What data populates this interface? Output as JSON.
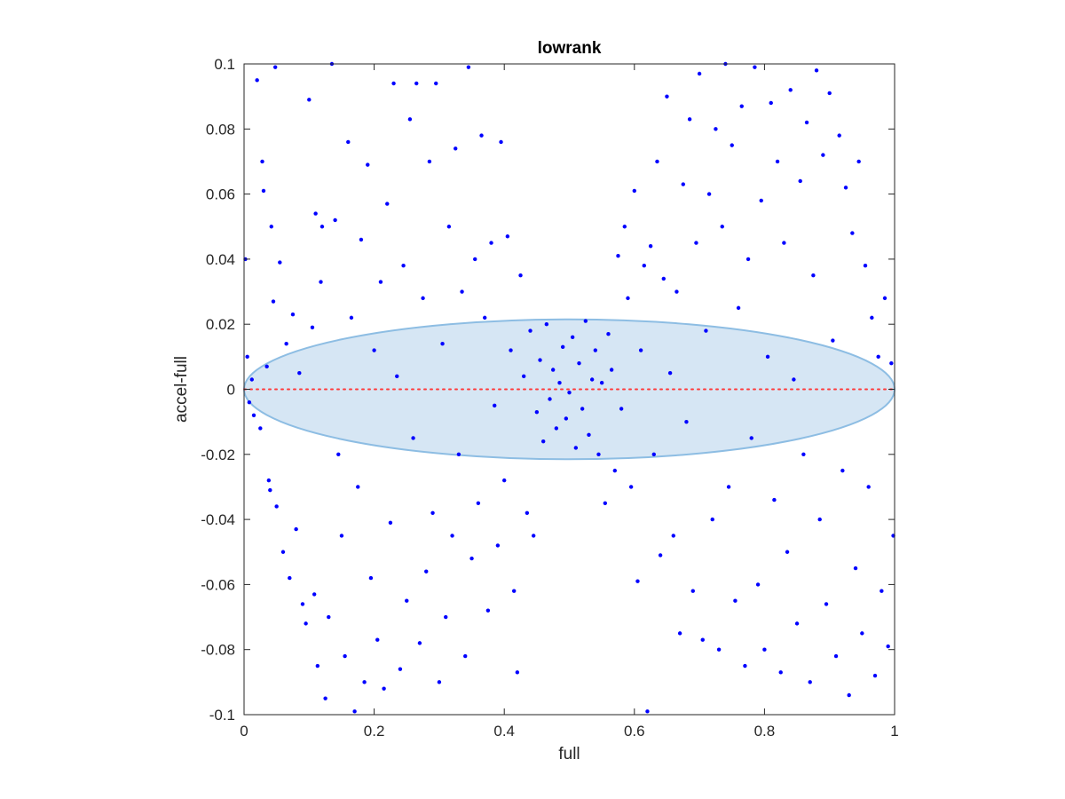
{
  "chart_data": {
    "type": "scatter",
    "title": "lowrank",
    "xlabel": "full",
    "ylabel": "accel-full",
    "xlim": [
      0,
      1
    ],
    "ylim": [
      -0.1,
      0.1
    ],
    "xticks": [
      "0",
      "0.2",
      "0.4",
      "0.6",
      "0.8",
      "1"
    ],
    "yticks": [
      "0.1",
      "0.08",
      "0.06",
      "0.04",
      "0.02",
      "0",
      "-0.02",
      "-0.04",
      "-0.06",
      "-0.08",
      "-0.1"
    ],
    "grid": false,
    "box": true,
    "reference_line": {
      "y": 0,
      "style": "dotted",
      "color": "#ff3b3b"
    },
    "ellipse": {
      "cx": 0.5,
      "cy": 0,
      "rx": 0.5,
      "ry": 0.0215,
      "fill": "#d6e6f4",
      "stroke": "#8dbde3"
    },
    "marker_color": "#0000ff",
    "series": [
      {
        "name": "",
        "points": [
          [
            0.002,
            0.04
          ],
          [
            0.005,
            0.01
          ],
          [
            0.008,
            -0.004
          ],
          [
            0.012,
            0.003
          ],
          [
            0.015,
            -0.008
          ],
          [
            0.02,
            0.095
          ],
          [
            0.025,
            -0.012
          ],
          [
            0.028,
            0.07
          ],
          [
            0.03,
            0.061
          ],
          [
            0.035,
            0.007
          ],
          [
            0.038,
            -0.028
          ],
          [
            0.04,
            -0.031
          ],
          [
            0.042,
            0.05
          ],
          [
            0.045,
            0.027
          ],
          [
            0.048,
            0.099
          ],
          [
            0.05,
            -0.036
          ],
          [
            0.055,
            0.039
          ],
          [
            0.06,
            -0.05
          ],
          [
            0.065,
            0.014
          ],
          [
            0.07,
            -0.058
          ],
          [
            0.075,
            0.023
          ],
          [
            0.08,
            -0.043
          ],
          [
            0.085,
            0.005
          ],
          [
            0.09,
            -0.066
          ],
          [
            0.095,
            -0.072
          ],
          [
            0.1,
            0.089
          ],
          [
            0.105,
            0.019
          ],
          [
            0.108,
            -0.063
          ],
          [
            0.11,
            0.054
          ],
          [
            0.113,
            -0.085
          ],
          [
            0.118,
            0.033
          ],
          [
            0.12,
            0.05
          ],
          [
            0.125,
            -0.095
          ],
          [
            0.13,
            -0.07
          ],
          [
            0.135,
            0.1
          ],
          [
            0.14,
            0.052
          ],
          [
            0.145,
            -0.02
          ],
          [
            0.15,
            -0.045
          ],
          [
            0.155,
            -0.082
          ],
          [
            0.16,
            0.076
          ],
          [
            0.165,
            0.022
          ],
          [
            0.17,
            -0.099
          ],
          [
            0.175,
            -0.03
          ],
          [
            0.18,
            0.046
          ],
          [
            0.185,
            -0.09
          ],
          [
            0.19,
            0.069
          ],
          [
            0.195,
            -0.058
          ],
          [
            0.2,
            0.012
          ],
          [
            0.205,
            -0.077
          ],
          [
            0.21,
            0.033
          ],
          [
            0.215,
            -0.092
          ],
          [
            0.22,
            0.057
          ],
          [
            0.225,
            -0.041
          ],
          [
            0.23,
            0.094
          ],
          [
            0.235,
            0.004
          ],
          [
            0.24,
            -0.086
          ],
          [
            0.245,
            0.038
          ],
          [
            0.25,
            -0.065
          ],
          [
            0.255,
            0.083
          ],
          [
            0.26,
            -0.015
          ],
          [
            0.265,
            0.094
          ],
          [
            0.27,
            -0.078
          ],
          [
            0.275,
            0.028
          ],
          [
            0.28,
            -0.056
          ],
          [
            0.285,
            0.07
          ],
          [
            0.29,
            -0.038
          ],
          [
            0.295,
            0.094
          ],
          [
            0.3,
            -0.09
          ],
          [
            0.305,
            0.014
          ],
          [
            0.31,
            -0.07
          ],
          [
            0.315,
            0.05
          ],
          [
            0.32,
            -0.045
          ],
          [
            0.325,
            0.074
          ],
          [
            0.33,
            -0.02
          ],
          [
            0.335,
            0.03
          ],
          [
            0.34,
            -0.082
          ],
          [
            0.345,
            0.099
          ],
          [
            0.35,
            -0.052
          ],
          [
            0.355,
            0.04
          ],
          [
            0.36,
            -0.035
          ],
          [
            0.365,
            0.078
          ],
          [
            0.37,
            0.022
          ],
          [
            0.375,
            -0.068
          ],
          [
            0.38,
            0.045
          ],
          [
            0.385,
            -0.005
          ],
          [
            0.39,
            -0.048
          ],
          [
            0.395,
            0.076
          ],
          [
            0.4,
            -0.028
          ],
          [
            0.405,
            0.047
          ],
          [
            0.41,
            0.012
          ],
          [
            0.415,
            -0.062
          ],
          [
            0.42,
            -0.087
          ],
          [
            0.425,
            0.035
          ],
          [
            0.43,
            0.004
          ],
          [
            0.435,
            -0.038
          ],
          [
            0.44,
            0.018
          ],
          [
            0.445,
            -0.045
          ],
          [
            0.45,
            -0.007
          ],
          [
            0.455,
            0.009
          ],
          [
            0.46,
            -0.016
          ],
          [
            0.465,
            0.02
          ],
          [
            0.47,
            -0.003
          ],
          [
            0.475,
            0.006
          ],
          [
            0.48,
            -0.012
          ],
          [
            0.485,
            0.002
          ],
          [
            0.49,
            0.013
          ],
          [
            0.495,
            -0.009
          ],
          [
            0.5,
            -0.001
          ],
          [
            0.505,
            0.016
          ],
          [
            0.51,
            -0.018
          ],
          [
            0.515,
            0.008
          ],
          [
            0.52,
            -0.006
          ],
          [
            0.525,
            0.021
          ],
          [
            0.53,
            -0.014
          ],
          [
            0.535,
            0.003
          ],
          [
            0.54,
            0.012
          ],
          [
            0.545,
            -0.02
          ],
          [
            0.55,
            0.002
          ],
          [
            0.555,
            -0.035
          ],
          [
            0.56,
            0.017
          ],
          [
            0.565,
            0.006
          ],
          [
            0.57,
            -0.025
          ],
          [
            0.575,
            0.041
          ],
          [
            0.58,
            -0.006
          ],
          [
            0.585,
            0.05
          ],
          [
            0.59,
            0.028
          ],
          [
            0.595,
            -0.03
          ],
          [
            0.6,
            0.061
          ],
          [
            0.605,
            -0.059
          ],
          [
            0.61,
            0.012
          ],
          [
            0.615,
            0.038
          ],
          [
            0.62,
            -0.099
          ],
          [
            0.625,
            0.044
          ],
          [
            0.63,
            -0.02
          ],
          [
            0.635,
            0.07
          ],
          [
            0.64,
            -0.051
          ],
          [
            0.645,
            0.034
          ],
          [
            0.65,
            0.09
          ],
          [
            0.655,
            0.005
          ],
          [
            0.66,
            -0.045
          ],
          [
            0.665,
            0.03
          ],
          [
            0.67,
            -0.075
          ],
          [
            0.675,
            0.063
          ],
          [
            0.68,
            -0.01
          ],
          [
            0.685,
            0.083
          ],
          [
            0.69,
            -0.062
          ],
          [
            0.695,
            0.045
          ],
          [
            0.7,
            0.097
          ],
          [
            0.705,
            -0.077
          ],
          [
            0.71,
            0.018
          ],
          [
            0.715,
            0.06
          ],
          [
            0.72,
            -0.04
          ],
          [
            0.725,
            0.08
          ],
          [
            0.73,
            -0.08
          ],
          [
            0.735,
            0.05
          ],
          [
            0.74,
            0.1
          ],
          [
            0.745,
            -0.03
          ],
          [
            0.75,
            0.075
          ],
          [
            0.755,
            -0.065
          ],
          [
            0.76,
            0.025
          ],
          [
            0.765,
            0.087
          ],
          [
            0.77,
            -0.085
          ],
          [
            0.775,
            0.04
          ],
          [
            0.78,
            -0.015
          ],
          [
            0.785,
            0.099
          ],
          [
            0.79,
            -0.06
          ],
          [
            0.795,
            0.058
          ],
          [
            0.8,
            -0.08
          ],
          [
            0.805,
            0.01
          ],
          [
            0.81,
            0.088
          ],
          [
            0.815,
            -0.034
          ],
          [
            0.82,
            0.07
          ],
          [
            0.825,
            -0.087
          ],
          [
            0.83,
            0.045
          ],
          [
            0.835,
            -0.05
          ],
          [
            0.84,
            0.092
          ],
          [
            0.845,
            0.003
          ],
          [
            0.85,
            -0.072
          ],
          [
            0.855,
            0.064
          ],
          [
            0.86,
            -0.02
          ],
          [
            0.865,
            0.082
          ],
          [
            0.87,
            -0.09
          ],
          [
            0.875,
            0.035
          ],
          [
            0.88,
            0.098
          ],
          [
            0.885,
            -0.04
          ],
          [
            0.89,
            0.072
          ],
          [
            0.895,
            -0.066
          ],
          [
            0.9,
            0.091
          ],
          [
            0.905,
            0.015
          ],
          [
            0.91,
            -0.082
          ],
          [
            0.915,
            0.078
          ],
          [
            0.92,
            -0.025
          ],
          [
            0.925,
            0.062
          ],
          [
            0.93,
            -0.094
          ],
          [
            0.935,
            0.048
          ],
          [
            0.94,
            -0.055
          ],
          [
            0.945,
            0.07
          ],
          [
            0.95,
            -0.075
          ],
          [
            0.955,
            0.038
          ],
          [
            0.96,
            -0.03
          ],
          [
            0.965,
            0.022
          ],
          [
            0.97,
            -0.088
          ],
          [
            0.975,
            0.01
          ],
          [
            0.98,
            -0.062
          ],
          [
            0.985,
            0.028
          ],
          [
            0.99,
            -0.079
          ],
          [
            0.995,
            0.008
          ],
          [
            0.998,
            -0.045
          ]
        ]
      }
    ]
  }
}
